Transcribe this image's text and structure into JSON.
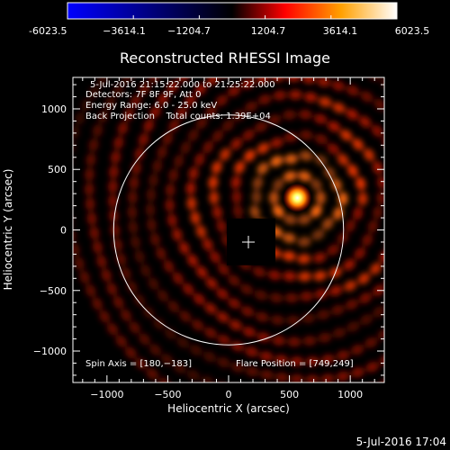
{
  "colorbar": {
    "tick_labels": [
      "-6023.5",
      "−3614.1",
      "−1204.7",
      "1204.7",
      "3614.1",
      "6023.5"
    ],
    "tick_values": [
      -6023.5,
      -3614.1,
      -1204.7,
      1204.7,
      3614.1,
      6023.5
    ],
    "range": [
      -6023.5,
      6023.5
    ],
    "colors": [
      "#0000ff",
      "#000000",
      "#ff0000",
      "#ffff00",
      "#ffffff"
    ]
  },
  "plot": {
    "title": "Reconstructed RHESSI Image",
    "xlabel": "Heliocentric X (arcsec)",
    "ylabel": "Heliocentric Y (arcsec)",
    "xlim": [
      -1280,
      1280
    ],
    "ylim": [
      -1260,
      1260
    ],
    "x_ticks": [
      -1000,
      -500,
      0,
      500,
      1000
    ],
    "x_tick_labels": [
      "−1000",
      "−500",
      "0",
      "500",
      "1000"
    ],
    "y_ticks": [
      1000,
      500,
      0,
      -500,
      -1000
    ],
    "y_tick_labels": [
      "1000",
      "500",
      "0",
      "−500",
      "−1000"
    ],
    "solar_radius_arcsec": 945,
    "info_lines": [
      "5-Jul-2016 21:15:22.000 to 21:25:22.000",
      "Detectors: 7F 8F 9F, Att 0",
      "Energy Range: 6.0 - 25.0 keV",
      "Back Projection    Total counts: 1.39E+04"
    ],
    "spin_axis": "Spin Axis = [180,−183]",
    "flare_position": "Flare Position = [749,249]"
  },
  "chart_data": {
    "type": "heatmap",
    "title": "Reconstructed RHESSI Image",
    "xlabel": "Heliocentric X (arcsec)",
    "ylabel": "Heliocentric Y (arcsec)",
    "xlim": [
      -1280,
      1280
    ],
    "ylim": [
      -1260,
      1260
    ],
    "source_peak": [
      565,
      265
    ],
    "value_range": [
      -6023.5,
      6023.5
    ]
  },
  "footer": {
    "timestamp": "5-Jul-2016 17:04"
  }
}
